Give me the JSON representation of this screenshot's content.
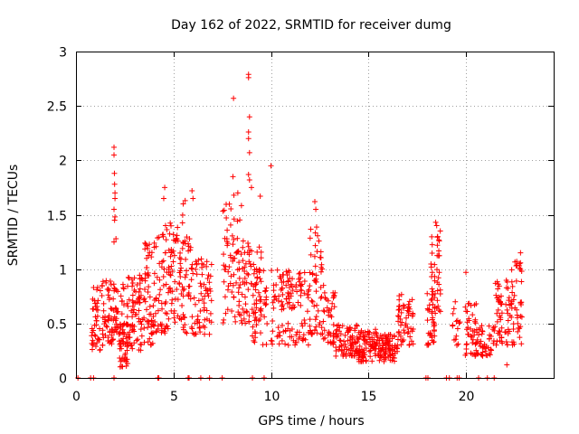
{
  "chart_data": {
    "type": "scatter",
    "title": "Day 162 of 2022, SRMTID for receiver dumg",
    "xlabel": "GPS time / hours",
    "ylabel": "SRMTID / TECUs",
    "xlim": [
      0,
      24.5
    ],
    "ylim": [
      0,
      3
    ],
    "xticks": [
      0,
      5,
      10,
      15,
      20
    ],
    "xtick_labels": [
      "0",
      "5",
      "10",
      "15",
      "20"
    ],
    "yticks": [
      0,
      0.5,
      1,
      1.5,
      2,
      2.5,
      3
    ],
    "ytick_labels": [
      "0",
      "0.5",
      "1",
      "1.5",
      "2",
      "2.5",
      "3"
    ],
    "grid": true,
    "marker": "+",
    "color": "#ff0000",
    "series": [
      {
        "name": "SRMTID",
        "clusters": [
          {
            "x": [
              0.8,
              1.3
            ],
            "y": [
              0.25,
              0.85
            ],
            "n": 40
          },
          {
            "x": [
              1.3,
              2.0
            ],
            "y": [
              0.3,
              0.9
            ],
            "n": 60
          },
          {
            "x": [
              2.0,
              2.5
            ],
            "y": [
              0.4,
              0.9
            ],
            "n": 30
          },
          {
            "x": [
              2.2,
              2.7
            ],
            "y": [
              0.1,
              0.5
            ],
            "n": 45
          },
          {
            "x": [
              2.6,
              3.5
            ],
            "y": [
              0.25,
              0.95
            ],
            "n": 75
          },
          {
            "x": [
              3.5,
              4.0
            ],
            "y": [
              0.3,
              1.3
            ],
            "n": 50
          },
          {
            "x": [
              4.0,
              4.8
            ],
            "y": [
              0.4,
              1.4
            ],
            "n": 65
          },
          {
            "x": [
              4.8,
              5.5
            ],
            "y": [
              0.5,
              1.5
            ],
            "n": 60
          },
          {
            "x": [
              5.5,
              6.3
            ],
            "y": [
              0.4,
              1.3
            ],
            "n": 55
          },
          {
            "x": [
              6.3,
              7.0
            ],
            "y": [
              0.4,
              1.1
            ],
            "n": 45
          },
          {
            "x": [
              7.5,
              8.5
            ],
            "y": [
              0.5,
              1.6
            ],
            "n": 70
          },
          {
            "x": [
              8.5,
              9.5
            ],
            "y": [
              0.5,
              1.3
            ],
            "n": 65
          },
          {
            "x": [
              9.0,
              9.8
            ],
            "y": [
              0.3,
              1.0
            ],
            "n": 40
          },
          {
            "x": [
              10.0,
              11.0
            ],
            "y": [
              0.3,
              1.0
            ],
            "n": 70
          },
          {
            "x": [
              11.0,
              12.0
            ],
            "y": [
              0.3,
              1.0
            ],
            "n": 60
          },
          {
            "x": [
              12.0,
              12.7
            ],
            "y": [
              0.4,
              1.4
            ],
            "n": 55
          },
          {
            "x": [
              12.7,
              13.3
            ],
            "y": [
              0.3,
              0.9
            ],
            "n": 40
          },
          {
            "x": [
              13.3,
              14.5
            ],
            "y": [
              0.2,
              0.5
            ],
            "n": 80
          },
          {
            "x": [
              14.5,
              15.5
            ],
            "y": [
              0.15,
              0.45
            ],
            "n": 90
          },
          {
            "x": [
              15.5,
              16.5
            ],
            "y": [
              0.15,
              0.4
            ],
            "n": 85
          },
          {
            "x": [
              16.5,
              17.3
            ],
            "y": [
              0.3,
              0.8
            ],
            "n": 55
          },
          {
            "x": [
              18.0,
              18.4
            ],
            "y": [
              0.3,
              0.8
            ],
            "n": 35
          },
          {
            "x": [
              18.2,
              18.7
            ],
            "y": [
              0.5,
              1.4
            ],
            "n": 40
          },
          {
            "x": [
              19.3,
              19.7
            ],
            "y": [
              0.3,
              0.7
            ],
            "n": 15
          },
          {
            "x": [
              19.9,
              20.6
            ],
            "y": [
              0.2,
              0.7
            ],
            "n": 45
          },
          {
            "x": [
              20.6,
              21.5
            ],
            "y": [
              0.2,
              0.5
            ],
            "n": 40
          },
          {
            "x": [
              21.5,
              22.3
            ],
            "y": [
              0.3,
              0.9
            ],
            "n": 55
          },
          {
            "x": [
              22.3,
              22.9
            ],
            "y": [
              0.3,
              1.1
            ],
            "n": 45
          }
        ],
        "outliers": [
          {
            "x": 1.95,
            "y": 2.12
          },
          {
            "x": 1.95,
            "y": 2.05
          },
          {
            "x": 1.97,
            "y": 1.88
          },
          {
            "x": 1.98,
            "y": 1.78
          },
          {
            "x": 2.0,
            "y": 1.7
          },
          {
            "x": 2.0,
            "y": 1.65
          },
          {
            "x": 1.95,
            "y": 1.55
          },
          {
            "x": 2.0,
            "y": 1.48
          },
          {
            "x": 1.98,
            "y": 1.45
          },
          {
            "x": 2.05,
            "y": 1.28
          },
          {
            "x": 1.95,
            "y": 1.25
          },
          {
            "x": 4.55,
            "y": 1.75
          },
          {
            "x": 4.5,
            "y": 1.65
          },
          {
            "x": 5.5,
            "y": 1.6
          },
          {
            "x": 5.6,
            "y": 1.63
          },
          {
            "x": 5.95,
            "y": 1.72
          },
          {
            "x": 6.0,
            "y": 1.65
          },
          {
            "x": 8.08,
            "y": 2.57
          },
          {
            "x": 8.85,
            "y": 2.79
          },
          {
            "x": 8.85,
            "y": 2.76
          },
          {
            "x": 8.9,
            "y": 2.4
          },
          {
            "x": 8.85,
            "y": 2.26
          },
          {
            "x": 8.85,
            "y": 2.2
          },
          {
            "x": 8.9,
            "y": 2.07
          },
          {
            "x": 8.05,
            "y": 1.85
          },
          {
            "x": 8.85,
            "y": 1.87
          },
          {
            "x": 8.9,
            "y": 1.82
          },
          {
            "x": 9.0,
            "y": 1.75
          },
          {
            "x": 8.3,
            "y": 1.7
          },
          {
            "x": 8.1,
            "y": 1.68
          },
          {
            "x": 9.45,
            "y": 1.67
          },
          {
            "x": 10.0,
            "y": 1.95
          },
          {
            "x": 12.25,
            "y": 1.62
          },
          {
            "x": 12.3,
            "y": 1.55
          },
          {
            "x": 18.45,
            "y": 1.43
          },
          {
            "x": 18.5,
            "y": 1.4
          },
          {
            "x": 18.55,
            "y": 1.3
          },
          {
            "x": 20.0,
            "y": 0.97
          },
          {
            "x": 22.8,
            "y": 1.15
          },
          {
            "x": 22.75,
            "y": 1.05
          },
          {
            "x": 22.1,
            "y": 0.12
          }
        ],
        "zero_points": [
          0.1,
          0.75,
          0.9,
          1.95,
          4.2,
          4.25,
          5.75,
          5.8,
          6.4,
          6.85,
          7.5,
          9.05,
          9.65,
          17.95,
          18.05,
          19.0,
          19.15,
          19.55,
          19.65,
          20.65,
          21.1,
          21.45
        ]
      }
    ]
  }
}
